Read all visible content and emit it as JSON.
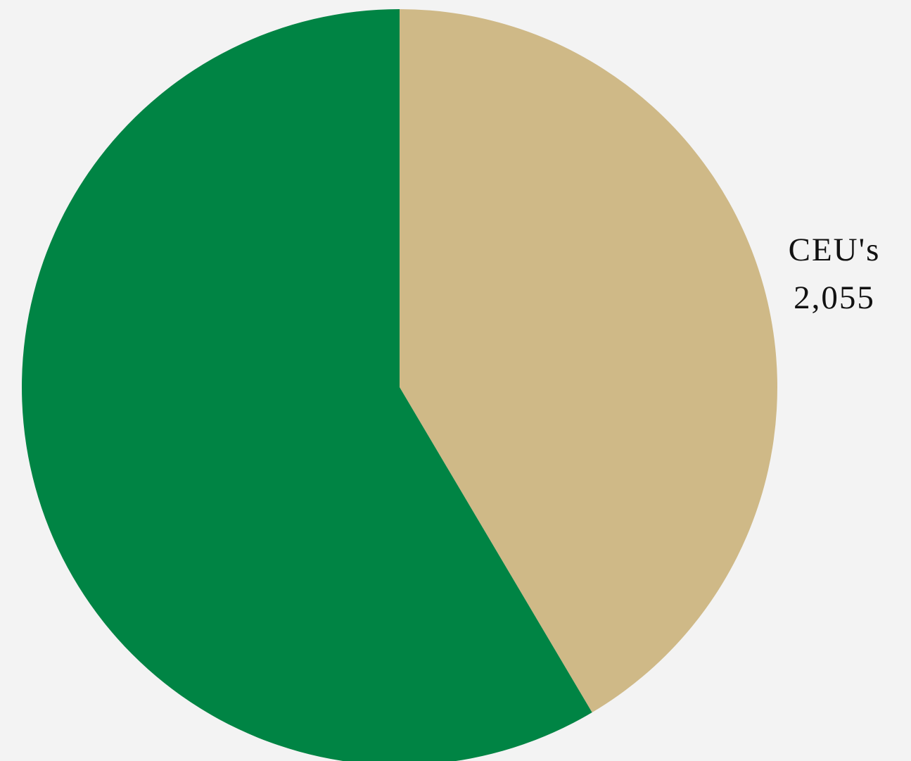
{
  "chart_data": {
    "type": "pie",
    "slices": [
      {
        "label": "CEU's",
        "value_label": "2,055",
        "value": 2055,
        "color": "#cfb987"
      },
      {
        "label": "",
        "value_label": "",
        "value": 2898,
        "color": "#008444"
      }
    ],
    "start_angle_deg": 0,
    "direction": "clockwise",
    "legend": "none"
  }
}
